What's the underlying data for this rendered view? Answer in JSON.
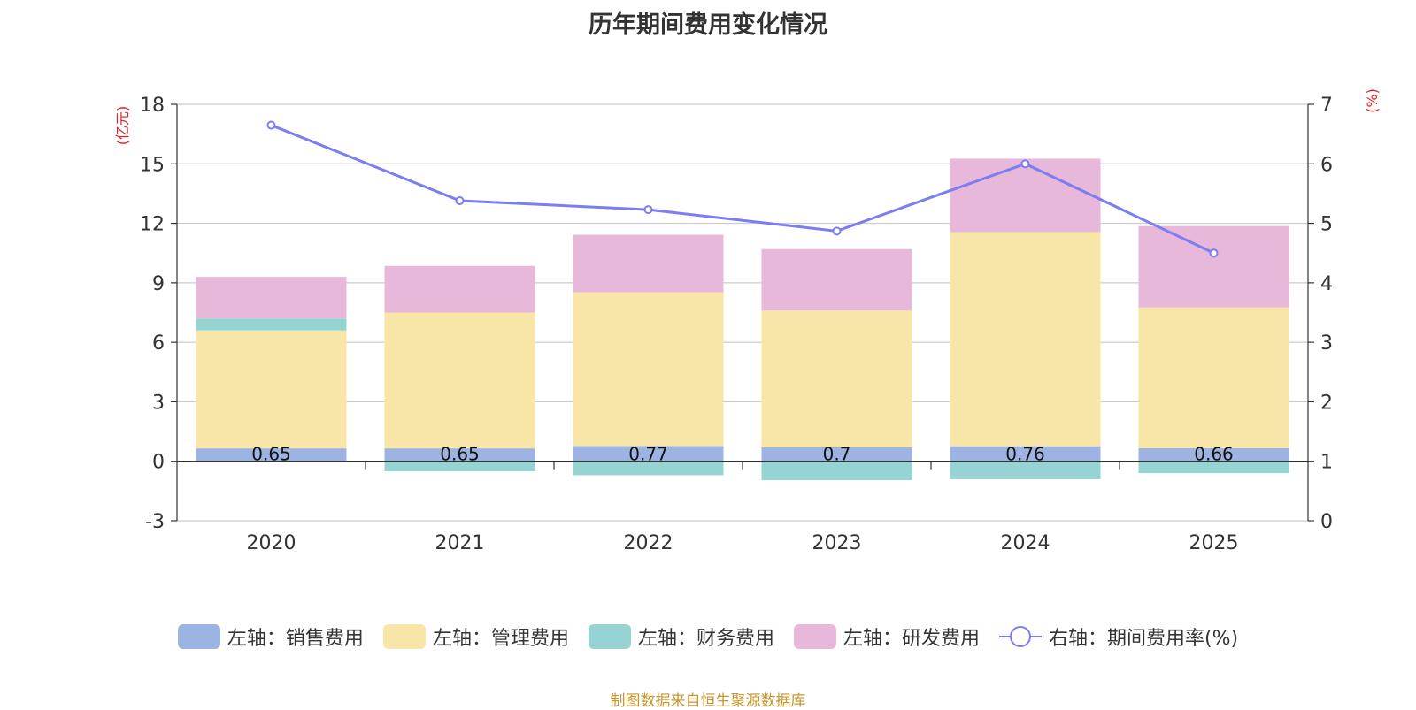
{
  "chart_data": {
    "type": "bar",
    "title": "历年期间费用变化情况",
    "categories": [
      "2020",
      "2021",
      "2022",
      "2023",
      "2024",
      "2025"
    ],
    "series": [
      {
        "name": "左轴：销售费用",
        "axis": "left",
        "color": "#9db4e2",
        "values": [
          0.65,
          0.65,
          0.77,
          0.7,
          0.76,
          0.66
        ]
      },
      {
        "name": "左轴：管理费用",
        "axis": "left",
        "color": "#f7e6a8",
        "values": [
          5.95,
          6.85,
          7.75,
          6.9,
          10.8,
          7.1
        ]
      },
      {
        "name": "左轴：财务费用",
        "axis": "left",
        "color": "#96d4d4",
        "values": [
          0.6,
          -0.5,
          -0.7,
          -0.95,
          -0.9,
          -0.6
        ]
      },
      {
        "name": "左轴：研发费用",
        "axis": "left",
        "color": "#e7b8d9",
        "values": [
          2.1,
          2.35,
          2.9,
          3.1,
          3.7,
          4.1
        ]
      },
      {
        "name": "右轴：期间费用率(%)",
        "axis": "right",
        "type": "line",
        "color": "#7b7ef0",
        "values": [
          6.65,
          5.38,
          5.23,
          4.87,
          6.0,
          4.5
        ]
      }
    ],
    "data_labels": [
      "0.65",
      "0.65",
      "0.77",
      "0.7",
      "0.76",
      "0.66"
    ],
    "ylabel_left": "(亿元)",
    "ylabel_right": "(%)",
    "ylim_left": [
      -3,
      18
    ],
    "yticks_left": [
      -3,
      0,
      3,
      6,
      9,
      12,
      15,
      18
    ],
    "ylim_right": [
      0,
      7
    ],
    "yticks_right": [
      0,
      1,
      2,
      3,
      4,
      5,
      6,
      7
    ],
    "grid": true,
    "legend": "bottom"
  },
  "footer": {
    "source": "制图数据来自恒生聚源数据库"
  }
}
